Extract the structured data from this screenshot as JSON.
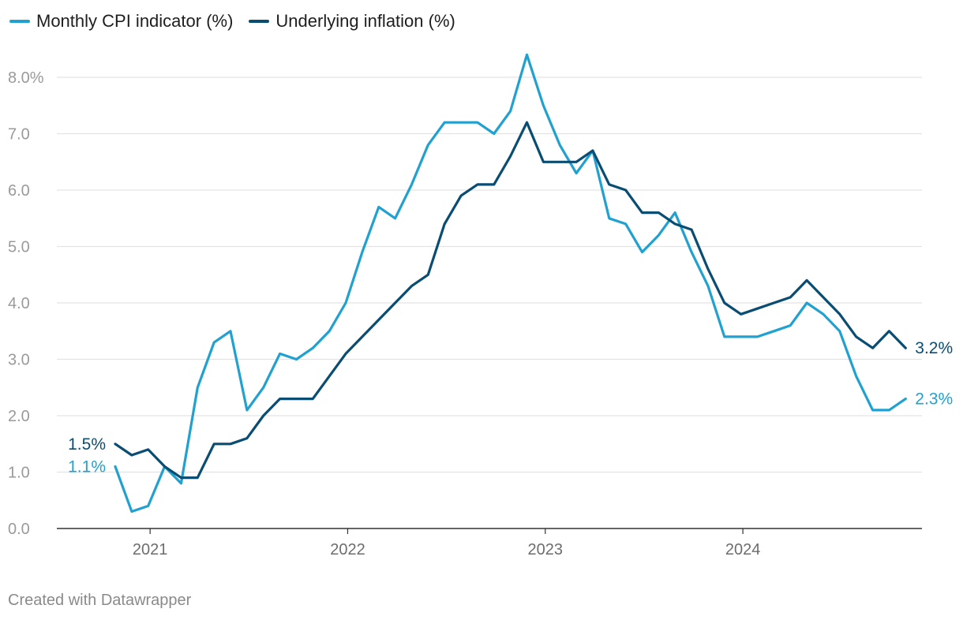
{
  "chart_data": {
    "type": "line",
    "title": "",
    "xlabel": "",
    "ylabel": "",
    "ylim": [
      0,
      8.4
    ],
    "y_ticks": [
      0.0,
      1.0,
      2.0,
      3.0,
      4.0,
      5.0,
      6.0,
      7.0,
      8.0
    ],
    "y_tick_labels": [
      "0.0",
      "1.0",
      "2.0",
      "3.0",
      "4.0",
      "5.0",
      "6.0",
      "7.0",
      "8.0%"
    ],
    "x_ticks": [
      2021,
      2022,
      2023,
      2024
    ],
    "x_tick_labels": [
      "2021",
      "2022",
      "2023",
      "2024"
    ],
    "x": [
      "2020-11",
      "2020-12",
      "2021-01",
      "2021-02",
      "2021-03",
      "2021-04",
      "2021-05",
      "2021-06",
      "2021-07",
      "2021-08",
      "2021-09",
      "2021-10",
      "2021-11",
      "2021-12",
      "2022-01",
      "2022-02",
      "2022-03",
      "2022-04",
      "2022-05",
      "2022-06",
      "2022-07",
      "2022-08",
      "2022-09",
      "2022-10",
      "2022-11",
      "2022-12",
      "2023-01",
      "2023-02",
      "2023-03",
      "2023-04",
      "2023-05",
      "2023-06",
      "2023-07",
      "2023-08",
      "2023-09",
      "2023-10",
      "2023-11",
      "2023-12",
      "2024-01",
      "2024-02",
      "2024-03",
      "2024-04",
      "2024-05",
      "2024-06",
      "2024-07",
      "2024-08",
      "2024-09",
      "2024-10",
      "2024-11"
    ],
    "series": [
      {
        "name": "Monthly CPI indicator (%)",
        "color": "#21a1d0",
        "end_label": "2.3%",
        "start_label": "1.1%",
        "values": [
          1.1,
          0.3,
          0.4,
          1.1,
          0.8,
          2.5,
          3.3,
          3.5,
          2.1,
          2.5,
          3.1,
          3.0,
          3.2,
          3.5,
          4.0,
          4.9,
          5.7,
          5.5,
          6.1,
          6.8,
          7.2,
          7.2,
          7.2,
          7.0,
          7.4,
          8.4,
          7.5,
          6.8,
          6.3,
          6.7,
          5.5,
          5.4,
          4.9,
          5.2,
          5.6,
          4.9,
          4.3,
          3.4,
          3.4,
          3.4,
          3.5,
          3.6,
          4.0,
          3.8,
          3.5,
          2.7,
          2.1,
          2.1,
          2.3
        ]
      },
      {
        "name": "Underlying inflation (%)",
        "color": "#0a4d72",
        "end_label": "3.2%",
        "start_label": "1.5%",
        "values": [
          1.5,
          1.3,
          1.4,
          1.1,
          0.9,
          0.9,
          1.5,
          1.5,
          1.6,
          2.0,
          2.3,
          2.3,
          2.3,
          2.7,
          3.1,
          3.4,
          3.7,
          4.0,
          4.3,
          4.5,
          5.4,
          5.9,
          6.1,
          6.1,
          6.6,
          7.2,
          6.5,
          6.5,
          6.5,
          6.7,
          6.1,
          6.0,
          5.6,
          5.6,
          5.4,
          5.3,
          4.6,
          4.0,
          3.8,
          3.9,
          4.0,
          4.1,
          4.4,
          4.1,
          3.8,
          3.4,
          3.2,
          3.5,
          3.2
        ]
      }
    ]
  },
  "legend": {
    "cpi_label": "Monthly CPI indicator (%)",
    "underlying_label": "Underlying inflation (%)"
  },
  "footer": "Created with Datawrapper"
}
